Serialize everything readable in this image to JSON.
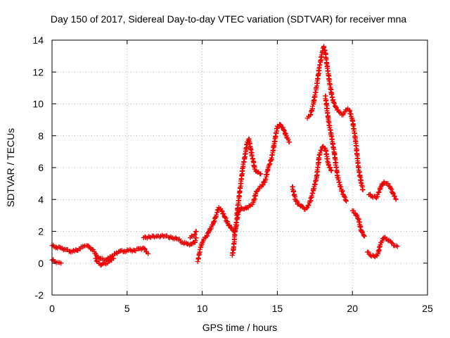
{
  "chart_data": {
    "type": "scatter",
    "title": "Day 150 of 2017, Sidereal Day-to-day VTEC variation (SDTVAR) for receiver mna",
    "xlabel": "GPS time / hours",
    "ylabel": "SDTVAR / TECUs",
    "xlim": [
      0,
      25
    ],
    "ylim": [
      -2,
      14
    ],
    "xticks": [
      0,
      5,
      10,
      15,
      20,
      25
    ],
    "yticks": [
      -2,
      0,
      2,
      4,
      6,
      8,
      10,
      12,
      14
    ],
    "xtick_labels": [
      "0",
      "5",
      "10",
      "15",
      "20",
      "25"
    ],
    "ytick_labels": [
      "-2",
      "0",
      "2",
      "4",
      "6",
      "8",
      "10",
      "12",
      "14"
    ],
    "grid": true,
    "marker": "plus",
    "color": "#ee0000",
    "series": [
      {
        "segments": [
          [
            [
              0.0,
              1.1
            ],
            [
              0.3,
              1.0
            ],
            [
              0.6,
              0.95
            ],
            [
              0.9,
              0.85
            ],
            [
              1.2,
              0.75
            ],
            [
              1.5,
              0.75
            ],
            [
              1.8,
              0.9
            ],
            [
              2.1,
              1.05
            ],
            [
              2.3,
              1.1
            ],
            [
              2.5,
              1.0
            ],
            [
              2.7,
              0.85
            ],
            [
              2.9,
              0.6
            ],
            [
              3.0,
              0.4
            ],
            [
              3.2,
              0.3
            ],
            [
              3.5,
              0.2
            ],
            [
              3.8,
              0.3
            ],
            [
              4.0,
              0.45
            ],
            [
              4.2,
              0.6
            ],
            [
              4.5,
              0.75
            ],
            [
              4.8,
              0.75
            ],
            [
              5.1,
              0.8
            ],
            [
              5.5,
              0.8
            ],
            [
              5.8,
              0.9
            ],
            [
              6.1,
              0.95
            ],
            [
              6.3,
              0.7
            ],
            [
              6.4,
              0.6
            ]
          ],
          [
            [
              0.0,
              0.2
            ],
            [
              0.2,
              0.1
            ],
            [
              0.4,
              0.05
            ],
            [
              0.6,
              0.0
            ]
          ],
          [
            [
              2.9,
              0.3
            ],
            [
              3.0,
              0.1
            ],
            [
              3.1,
              0.0
            ],
            [
              3.3,
              -0.1
            ],
            [
              3.5,
              0.0
            ],
            [
              3.7,
              0.0
            ],
            [
              3.9,
              0.2
            ],
            [
              4.1,
              0.3
            ]
          ],
          [
            [
              6.1,
              1.6
            ],
            [
              6.5,
              1.65
            ],
            [
              7.0,
              1.7
            ],
            [
              7.5,
              1.7
            ],
            [
              8.0,
              1.6
            ],
            [
              8.4,
              1.5
            ],
            [
              8.7,
              1.3
            ],
            [
              9.0,
              1.2
            ],
            [
              9.3,
              1.2
            ],
            [
              9.5,
              1.3
            ],
            [
              9.6,
              1.6
            ]
          ],
          [
            [
              9.2,
              1.6
            ],
            [
              9.5,
              1.8
            ],
            [
              9.6,
              2.0
            ]
          ],
          [
            [
              9.7,
              0.1
            ],
            [
              9.75,
              0.3
            ],
            [
              9.8,
              0.6
            ],
            [
              9.9,
              1.0
            ],
            [
              10.0,
              1.3
            ],
            [
              10.1,
              1.5
            ],
            [
              10.3,
              1.7
            ],
            [
              10.5,
              2.1
            ],
            [
              10.7,
              2.4
            ],
            [
              10.9,
              2.9
            ],
            [
              11.0,
              3.2
            ],
            [
              11.1,
              3.5
            ],
            [
              11.3,
              3.3
            ],
            [
              11.5,
              2.9
            ],
            [
              11.7,
              2.5
            ],
            [
              11.9,
              2.2
            ],
            [
              12.1,
              2.0
            ],
            [
              12.2,
              2.1
            ],
            [
              12.3,
              2.4
            ]
          ],
          [
            [
              12.0,
              0.5
            ],
            [
              12.1,
              1.0
            ],
            [
              12.2,
              2.2
            ],
            [
              12.4,
              3.2
            ],
            [
              12.6,
              3.5
            ],
            [
              12.8,
              3.4
            ],
            [
              13.0,
              3.5
            ],
            [
              13.2,
              3.6
            ],
            [
              13.4,
              3.8
            ],
            [
              13.6,
              4.5
            ],
            [
              13.8,
              4.7
            ],
            [
              14.0,
              4.9
            ],
            [
              14.2,
              5.2
            ],
            [
              14.4,
              6.0
            ],
            [
              14.6,
              6.5
            ],
            [
              14.8,
              7.5
            ],
            [
              15.0,
              8.6
            ],
            [
              15.2,
              8.7
            ],
            [
              15.4,
              8.4
            ],
            [
              15.6,
              8.0
            ],
            [
              15.8,
              7.6
            ]
          ],
          [
            [
              12.3,
              3.0
            ],
            [
              12.5,
              4.5
            ],
            [
              12.7,
              6.0
            ],
            [
              12.9,
              7.0
            ],
            [
              13.0,
              7.6
            ],
            [
              13.1,
              7.8
            ],
            [
              13.2,
              7.3
            ],
            [
              13.3,
              6.8
            ],
            [
              13.4,
              6.4
            ],
            [
              13.5,
              5.9
            ],
            [
              13.7,
              5.7
            ],
            [
              13.9,
              5.6
            ]
          ],
          [
            [
              16.0,
              4.8
            ],
            [
              16.2,
              4.0
            ],
            [
              16.4,
              3.7
            ],
            [
              16.6,
              3.6
            ],
            [
              16.8,
              3.4
            ],
            [
              17.0,
              3.5
            ],
            [
              17.2,
              3.9
            ],
            [
              17.4,
              4.6
            ],
            [
              17.6,
              5.3
            ],
            [
              17.8,
              6.8
            ],
            [
              18.0,
              7.3
            ],
            [
              18.2,
              7.2
            ],
            [
              18.4,
              6.2
            ],
            [
              18.6,
              5.8
            ]
          ],
          [
            [
              17.0,
              9.1
            ],
            [
              17.2,
              9.3
            ],
            [
              17.3,
              9.6
            ],
            [
              17.4,
              10.0
            ],
            [
              17.6,
              11.0
            ],
            [
              17.8,
              12.3
            ],
            [
              18.0,
              13.3
            ],
            [
              18.1,
              13.6
            ],
            [
              18.2,
              13.2
            ],
            [
              18.3,
              12.5
            ],
            [
              18.5,
              11.2
            ],
            [
              18.7,
              10.2
            ],
            [
              18.9,
              9.8
            ],
            [
              19.1,
              9.5
            ],
            [
              19.3,
              9.3
            ],
            [
              19.5,
              9.5
            ],
            [
              19.7,
              9.7
            ],
            [
              19.8,
              9.6
            ],
            [
              20.0,
              9.0
            ],
            [
              20.2,
              7.8
            ],
            [
              20.4,
              6.0
            ],
            [
              20.6,
              5.0
            ],
            [
              20.7,
              4.6
            ]
          ],
          [
            [
              18.2,
              10.5
            ],
            [
              18.4,
              9.0
            ],
            [
              18.6,
              8.0
            ],
            [
              18.8,
              6.9
            ],
            [
              19.0,
              5.5
            ],
            [
              19.2,
              4.8
            ],
            [
              19.4,
              4.3
            ],
            [
              19.6,
              3.9
            ]
          ],
          [
            [
              20.0,
              3.3
            ],
            [
              20.2,
              3.1
            ],
            [
              20.4,
              2.8
            ],
            [
              20.6,
              2.0
            ],
            [
              20.8,
              1.7
            ]
          ],
          [
            [
              21.0,
              0.7
            ],
            [
              21.2,
              0.5
            ],
            [
              21.5,
              0.4
            ],
            [
              21.7,
              0.6
            ],
            [
              21.9,
              1.3
            ],
            [
              22.1,
              1.6
            ],
            [
              22.3,
              1.5
            ],
            [
              22.6,
              1.3
            ],
            [
              22.8,
              1.1
            ],
            [
              23.0,
              1.05
            ]
          ],
          [
            [
              21.1,
              4.3
            ],
            [
              21.3,
              4.2
            ],
            [
              21.6,
              4.1
            ],
            [
              21.9,
              4.8
            ],
            [
              22.1,
              5.1
            ],
            [
              22.3,
              5.0
            ],
            [
              22.5,
              4.8
            ],
            [
              22.7,
              4.4
            ],
            [
              22.9,
              4.0
            ]
          ]
        ]
      }
    ]
  }
}
